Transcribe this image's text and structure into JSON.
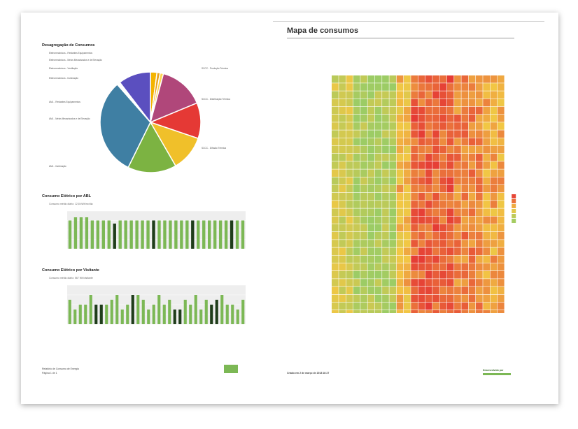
{
  "left_page": {
    "pie_title": "Desagregação de Consumos",
    "pie_labels": [
      "Eletromecânicos - Restantes Equipamentos",
      "Eletromecânicos - Meios Mecanizados e de Elevação",
      "Eletromecânicos - Ventilação",
      "Eletromecânicos - Iluminação",
      "AML - Restantes Equipamentos",
      "AML - Meios Mecanizados e de Elevação",
      "AML - Iluminação",
      "SCCC - Produção Térmica",
      "SCCC - Distribuição Térmica",
      "SCCC - Difusão Térmica"
    ],
    "bar1_title": "Consumo Elétrico por ABL",
    "bar1_subtitle": "Consumo médio diário: 12,8 kWh/m²/dia",
    "bar2_title": "Consumo Elétrico por Visitante",
    "bar2_subtitle": "Consumo médio diário: 567 Wh/visitante",
    "footer_left": "Relatório de Consumo de Energia",
    "footer_page": "Página 1 de 1"
  },
  "right_page": {
    "map_title": "Mapa de consumos",
    "footer_left": "Criado em 2 de março de 2018 16:27",
    "footer_right": "Desenvolvido por"
  },
  "colors": {
    "pie": [
      "#7ab648",
      "#f4b400",
      "#e53935",
      "#e6b820",
      "#7cb342",
      "#3f7fa3",
      "#5e4fbf",
      "#a0407a",
      "#f57c00",
      "#4caf50"
    ],
    "bar_light": "#7cb855",
    "bar_dark": "#1f3d1a",
    "heat_low": "#9ccc65",
    "heat_mid": "#f2c744",
    "heat_high": "#e53935"
  },
  "chart_data": [
    {
      "type": "pie",
      "title": "Desagregação de Consumos",
      "categories": [
        "Eletromecânicos - Restantes Equipamentos",
        "Eletromecânicos - Meios Mecanizados e de Elevação",
        "Eletromecânicos - Ventilação",
        "Eletromecânicos - Iluminação",
        "SCCC - Produção Térmica",
        "SCCC - Distribuição Térmica",
        "SCCC - Difusão Térmica",
        "AML - Iluminação",
        "AML - Meios Mecanizados e de Elevação",
        "AML - Restantes Equipamentos"
      ],
      "values": [
        2,
        1,
        1,
        14,
        11,
        11,
        15,
        30,
        1,
        10
      ]
    },
    {
      "type": "bar",
      "title": "Consumo Elétrico por ABL",
      "values": [
        9,
        10,
        10,
        10,
        9,
        9,
        9,
        9,
        8,
        9,
        9,
        9,
        9,
        9,
        9,
        9,
        9,
        9,
        9,
        9,
        9,
        9,
        9,
        9,
        9,
        9,
        9,
        9,
        9,
        9,
        9,
        9
      ],
      "dark": [
        0,
        0,
        0,
        0,
        0,
        0,
        0,
        0,
        1,
        0,
        0,
        0,
        0,
        0,
        0,
        1,
        0,
        0,
        0,
        0,
        0,
        0,
        1,
        0,
        0,
        0,
        0,
        0,
        0,
        1,
        0,
        0
      ],
      "ylim": [
        0,
        12
      ]
    },
    {
      "type": "bar",
      "title": "Consumo Elétrico por Visitante",
      "values": [
        5,
        3,
        4,
        4,
        6,
        4,
        4,
        4,
        5,
        6,
        3,
        4,
        6,
        6,
        5,
        3,
        4,
        6,
        4,
        5,
        3,
        3,
        5,
        4,
        6,
        3,
        5,
        4,
        5,
        6,
        4,
        4,
        3,
        5
      ],
      "dark": [
        0,
        0,
        0,
        0,
        0,
        1,
        1,
        0,
        0,
        0,
        0,
        0,
        1,
        0,
        0,
        0,
        0,
        0,
        0,
        0,
        1,
        1,
        0,
        0,
        0,
        0,
        0,
        1,
        1,
        0,
        0,
        0,
        0,
        0
      ],
      "ylim": [
        0,
        8
      ]
    },
    {
      "type": "heatmap",
      "title": "Mapa de consumos",
      "rows": 31,
      "cols": 24
    }
  ]
}
